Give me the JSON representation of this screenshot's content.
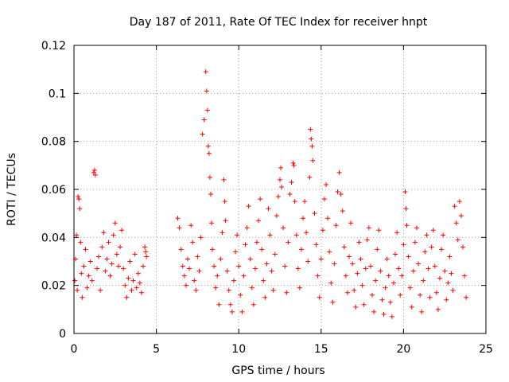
{
  "chart_data": {
    "type": "scatter",
    "title": "Day 187 of 2011, Rate Of TEC Index for receiver hnpt",
    "xlabel": "GPS time / hours",
    "ylabel": "ROTI / TECUs",
    "xlim": [
      0,
      25
    ],
    "ylim": [
      0,
      0.12
    ],
    "x_ticks": [
      0,
      5,
      10,
      15,
      20,
      25
    ],
    "y_ticks": [
      0,
      0.02,
      0.04,
      0.06,
      0.08,
      0.1,
      0.12
    ],
    "x_tick_labels": [
      "0",
      "5",
      "10",
      "15",
      "20",
      "25"
    ],
    "y_tick_labels": [
      "0",
      "0.02",
      "0.04",
      "0.06",
      "0.08",
      "0.1",
      "0.12"
    ],
    "grid": true,
    "marker": "+",
    "color": "#ff0000",
    "series": [
      {
        "points": [
          [
            0.05,
            0.022
          ],
          [
            0.1,
            0.031
          ],
          [
            0.15,
            0.041
          ],
          [
            0.2,
            0.018
          ],
          [
            0.25,
            0.057
          ],
          [
            0.3,
            0.056
          ],
          [
            0.35,
            0.052
          ],
          [
            0.4,
            0.038
          ],
          [
            0.45,
            0.025
          ],
          [
            0.5,
            0.015
          ],
          [
            0.6,
            0.028
          ],
          [
            0.7,
            0.035
          ],
          [
            0.8,
            0.019
          ],
          [
            0.9,
            0.024
          ],
          [
            1.0,
            0.03
          ],
          [
            1.1,
            0.022
          ],
          [
            1.2,
            0.067
          ],
          [
            1.25,
            0.068
          ],
          [
            1.3,
            0.066
          ],
          [
            1.4,
            0.027
          ],
          [
            1.5,
            0.032
          ],
          [
            1.6,
            0.018
          ],
          [
            1.7,
            0.036
          ],
          [
            1.8,
            0.042
          ],
          [
            1.9,
            0.026
          ],
          [
            2.0,
            0.031
          ],
          [
            2.1,
            0.038
          ],
          [
            2.2,
            0.024
          ],
          [
            2.3,
            0.029
          ],
          [
            2.4,
            0.041
          ],
          [
            2.5,
            0.046
          ],
          [
            2.6,
            0.033
          ],
          [
            2.7,
            0.028
          ],
          [
            2.8,
            0.036
          ],
          [
            2.9,
            0.043
          ],
          [
            3.0,
            0.027
          ],
          [
            3.1,
            0.02
          ],
          [
            3.2,
            0.015
          ],
          [
            3.3,
            0.023
          ],
          [
            3.4,
            0.03
          ],
          [
            3.5,
            0.018
          ],
          [
            3.6,
            0.022
          ],
          [
            3.7,
            0.033
          ],
          [
            3.8,
            0.019
          ],
          [
            3.9,
            0.025
          ],
          [
            4.0,
            0.021
          ],
          [
            4.1,
            0.017
          ],
          [
            4.2,
            0.028
          ],
          [
            4.3,
            0.036
          ],
          [
            4.35,
            0.034
          ],
          [
            4.4,
            0.032
          ],
          [
            6.3,
            0.048
          ],
          [
            6.4,
            0.044
          ],
          [
            6.5,
            0.035
          ],
          [
            6.6,
            0.028
          ],
          [
            6.7,
            0.024
          ],
          [
            6.8,
            0.02
          ],
          [
            6.9,
            0.031
          ],
          [
            7.0,
            0.027
          ],
          [
            7.1,
            0.045
          ],
          [
            7.2,
            0.038
          ],
          [
            7.3,
            0.022
          ],
          [
            7.4,
            0.018
          ],
          [
            7.5,
            0.032
          ],
          [
            7.6,
            0.026
          ],
          [
            7.7,
            0.04
          ],
          [
            7.8,
            0.083
          ],
          [
            7.9,
            0.089
          ],
          [
            8.0,
            0.109
          ],
          [
            8.05,
            0.101
          ],
          [
            8.1,
            0.093
          ],
          [
            8.15,
            0.078
          ],
          [
            8.2,
            0.075
          ],
          [
            8.25,
            0.065
          ],
          [
            8.3,
            0.058
          ],
          [
            8.35,
            0.046
          ],
          [
            8.4,
            0.035
          ],
          [
            8.5,
            0.028
          ],
          [
            8.6,
            0.019
          ],
          [
            8.7,
            0.024
          ],
          [
            8.8,
            0.012
          ],
          [
            8.9,
            0.031
          ],
          [
            9.0,
            0.042
          ],
          [
            9.1,
            0.064
          ],
          [
            9.15,
            0.055
          ],
          [
            9.2,
            0.047
          ],
          [
            9.3,
            0.026
          ],
          [
            9.4,
            0.018
          ],
          [
            9.5,
            0.012
          ],
          [
            9.6,
            0.009
          ],
          [
            9.7,
            0.022
          ],
          [
            9.8,
            0.034
          ],
          [
            9.9,
            0.041
          ],
          [
            10.0,
            0.028
          ],
          [
            10.1,
            0.016
          ],
          [
            10.2,
            0.009
          ],
          [
            10.3,
            0.024
          ],
          [
            10.4,
            0.037
          ],
          [
            10.5,
            0.044
          ],
          [
            10.6,
            0.053
          ],
          [
            10.7,
            0.031
          ],
          [
            10.8,
            0.019
          ],
          [
            10.9,
            0.012
          ],
          [
            11.0,
            0.027
          ],
          [
            11.1,
            0.038
          ],
          [
            11.2,
            0.047
          ],
          [
            11.3,
            0.056
          ],
          [
            11.4,
            0.035
          ],
          [
            11.5,
            0.022
          ],
          [
            11.6,
            0.015
          ],
          [
            11.7,
            0.029
          ],
          [
            11.8,
            0.052
          ],
          [
            11.9,
            0.041
          ],
          [
            12.0,
            0.026
          ],
          [
            12.1,
            0.018
          ],
          [
            12.2,
            0.033
          ],
          [
            12.3,
            0.049
          ],
          [
            12.4,
            0.057
          ],
          [
            12.5,
            0.064
          ],
          [
            12.55,
            0.069
          ],
          [
            12.6,
            0.061
          ],
          [
            12.7,
            0.044
          ],
          [
            12.8,
            0.028
          ],
          [
            12.9,
            0.017
          ],
          [
            13.0,
            0.038
          ],
          [
            13.1,
            0.058
          ],
          [
            13.2,
            0.063
          ],
          [
            13.3,
            0.071
          ],
          [
            13.35,
            0.07
          ],
          [
            13.4,
            0.055
          ],
          [
            13.5,
            0.041
          ],
          [
            13.6,
            0.027
          ],
          [
            13.7,
            0.019
          ],
          [
            13.8,
            0.035
          ],
          [
            13.9,
            0.048
          ],
          [
            14.0,
            0.055
          ],
          [
            14.1,
            0.042
          ],
          [
            14.2,
            0.03
          ],
          [
            14.3,
            0.065
          ],
          [
            14.35,
            0.085
          ],
          [
            14.4,
            0.081
          ],
          [
            14.45,
            0.078
          ],
          [
            14.5,
            0.072
          ],
          [
            14.6,
            0.05
          ],
          [
            14.7,
            0.037
          ],
          [
            14.8,
            0.024
          ],
          [
            14.9,
            0.015
          ],
          [
            15.0,
            0.031
          ],
          [
            15.1,
            0.043
          ],
          [
            15.2,
            0.056
          ],
          [
            15.3,
            0.062
          ],
          [
            15.4,
            0.048
          ],
          [
            15.5,
            0.034
          ],
          [
            15.6,
            0.021
          ],
          [
            15.7,
            0.013
          ],
          [
            15.8,
            0.029
          ],
          [
            15.9,
            0.045
          ],
          [
            16.0,
            0.059
          ],
          [
            16.1,
            0.067
          ],
          [
            16.2,
            0.058
          ],
          [
            16.3,
            0.051
          ],
          [
            16.4,
            0.036
          ],
          [
            16.5,
            0.024
          ],
          [
            16.6,
            0.017
          ],
          [
            16.7,
            0.032
          ],
          [
            16.8,
            0.046
          ],
          [
            16.9,
            0.029
          ],
          [
            17.0,
            0.018
          ],
          [
            17.1,
            0.011
          ],
          [
            17.2,
            0.025
          ],
          [
            17.3,
            0.038
          ],
          [
            17.4,
            0.031
          ],
          [
            17.5,
            0.02
          ],
          [
            17.6,
            0.012
          ],
          [
            17.7,
            0.027
          ],
          [
            17.8,
            0.039
          ],
          [
            17.9,
            0.044
          ],
          [
            18.0,
            0.028
          ],
          [
            18.1,
            0.016
          ],
          [
            18.2,
            0.009
          ],
          [
            18.3,
            0.022
          ],
          [
            18.4,
            0.035
          ],
          [
            18.5,
            0.043
          ],
          [
            18.6,
            0.026
          ],
          [
            18.7,
            0.014
          ],
          [
            18.8,
            0.008
          ],
          [
            18.9,
            0.019
          ],
          [
            19.0,
            0.031
          ],
          [
            19.1,
            0.024
          ],
          [
            19.2,
            0.013
          ],
          [
            19.3,
            0.007
          ],
          [
            19.4,
            0.021
          ],
          [
            19.5,
            0.033
          ],
          [
            19.6,
            0.042
          ],
          [
            19.7,
            0.027
          ],
          [
            19.8,
            0.016
          ],
          [
            19.9,
            0.024
          ],
          [
            20.0,
            0.037
          ],
          [
            20.1,
            0.059
          ],
          [
            20.15,
            0.052
          ],
          [
            20.2,
            0.045
          ],
          [
            20.3,
            0.032
          ],
          [
            20.4,
            0.019
          ],
          [
            20.5,
            0.011
          ],
          [
            20.6,
            0.026
          ],
          [
            20.7,
            0.038
          ],
          [
            20.8,
            0.044
          ],
          [
            20.9,
            0.029
          ],
          [
            21.0,
            0.016
          ],
          [
            21.1,
            0.009
          ],
          [
            21.2,
            0.022
          ],
          [
            21.3,
            0.034
          ],
          [
            21.4,
            0.041
          ],
          [
            21.5,
            0.027
          ],
          [
            21.6,
            0.015
          ],
          [
            21.7,
            0.036
          ],
          [
            21.8,
            0.043
          ],
          [
            21.9,
            0.028
          ],
          [
            22.0,
            0.017
          ],
          [
            22.1,
            0.01
          ],
          [
            22.2,
            0.023
          ],
          [
            22.3,
            0.035
          ],
          [
            22.4,
            0.041
          ],
          [
            22.5,
            0.026
          ],
          [
            22.6,
            0.014
          ],
          [
            22.7,
            0.021
          ],
          [
            22.8,
            0.032
          ],
          [
            22.9,
            0.025
          ],
          [
            23.0,
            0.018
          ],
          [
            23.1,
            0.053
          ],
          [
            23.2,
            0.046
          ],
          [
            23.3,
            0.039
          ],
          [
            23.4,
            0.055
          ],
          [
            23.5,
            0.049
          ],
          [
            23.6,
            0.036
          ],
          [
            23.7,
            0.024
          ],
          [
            23.8,
            0.015
          ]
        ]
      }
    ]
  }
}
